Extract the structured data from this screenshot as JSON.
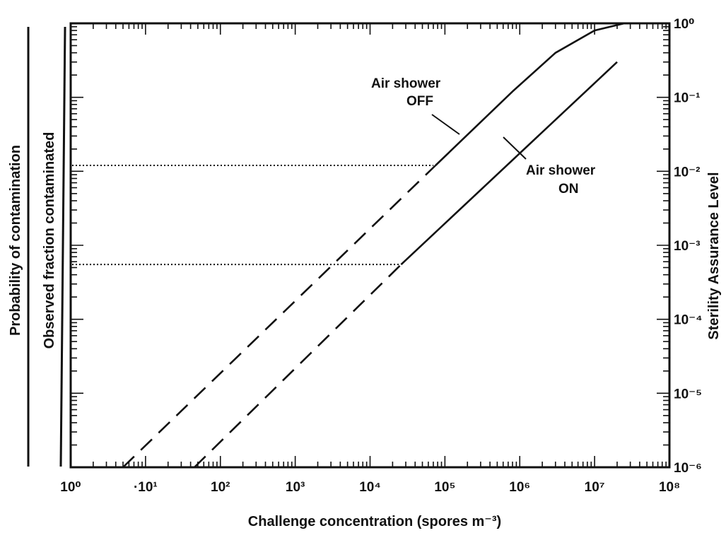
{
  "chart_data": {
    "type": "line",
    "x_scale": "log",
    "y_scale": "log",
    "xlim": [
      1,
      100000000
    ],
    "ylim": [
      1e-06,
      1
    ],
    "x_ticks": [
      {
        "value": 1,
        "label": "10⁰"
      },
      {
        "value": 10,
        "label": "·10¹"
      },
      {
        "value": 100,
        "label": "10²"
      },
      {
        "value": 1000,
        "label": "10³"
      },
      {
        "value": 10000,
        "label": "10⁴"
      },
      {
        "value": 100000,
        "label": "10⁵"
      },
      {
        "value": 1000000,
        "label": "10⁶"
      },
      {
        "value": 10000000,
        "label": "10⁷"
      },
      {
        "value": 100000000,
        "label": "10⁸"
      }
    ],
    "y_ticks": [
      {
        "value": 1,
        "label": "10⁰"
      },
      {
        "value": 0.1,
        "label": "10⁻¹"
      },
      {
        "value": 0.01,
        "label": "10⁻²"
      },
      {
        "value": 0.001,
        "label": "10⁻³"
      },
      {
        "value": 0.0001,
        "label": "10⁻⁴"
      },
      {
        "value": 1e-05,
        "label": "10⁻⁵"
      },
      {
        "value": 1e-06,
        "label": "10⁻⁶"
      }
    ],
    "xlabel": "Challenge concentration (spores m⁻³)",
    "ylabel_left": [
      "Probability of contamination",
      "Observed fraction contaminated"
    ],
    "ylabel_right": "Sterility Assurance Level",
    "grid": false,
    "series": [
      {
        "name": "Air shower OFF",
        "segments": [
          {
            "style": "dashed",
            "points": [
              [
                5,
                1e-06
              ],
              [
                75000,
                0.012
              ]
            ]
          },
          {
            "style": "solid",
            "points": [
              [
                75000,
                0.012
              ],
              [
                800000,
                0.12
              ],
              [
                3000000,
                0.4
              ],
              [
                10000000,
                0.8
              ],
              [
                25000000,
                1.0
              ]
            ]
          }
        ]
      },
      {
        "name": "Air shower ON",
        "segments": [
          {
            "style": "dashed",
            "points": [
              [
                45,
                1e-06
              ],
              [
                26000,
                0.00055
              ]
            ]
          },
          {
            "style": "solid",
            "points": [
              [
                26000,
                0.00055
              ],
              [
                20000000,
                0.3
              ]
            ]
          }
        ]
      }
    ],
    "observed_fraction_levels": [
      {
        "series": "Air shower OFF",
        "y": 0.012,
        "x_end": 70000,
        "style": "dotted"
      },
      {
        "series": "Air shower ON",
        "y": 0.00055,
        "x_end": 25000,
        "style": "dotted"
      }
    ],
    "annotations": [
      {
        "lines": [
          "Air shower",
          "OFF"
        ],
        "series": "Air shower OFF"
      },
      {
        "lines": [
          "Air shower",
          "ON"
        ],
        "series": "Air shower ON"
      }
    ]
  }
}
